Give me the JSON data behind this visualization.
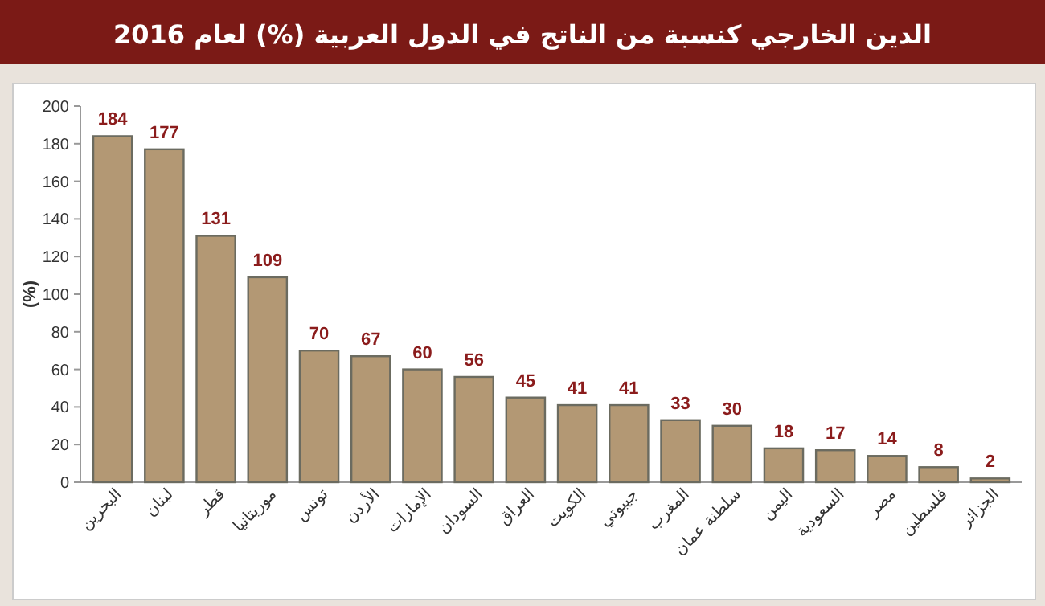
{
  "chart_data": {
    "type": "bar",
    "title": "الدين الخارجي كنسبة من الناتج  في الدول العربية (%) لعام 2016",
    "ylabel": "(%)",
    "categories": [
      "البحرين",
      "لبنان",
      "قطر",
      "موريتانيا",
      "تونس",
      "الأردن",
      "الإمارات",
      "السودان",
      "العراق",
      "الكويت",
      "جيبوتي",
      "المغرب",
      "سلطنة عمان",
      "اليمن",
      "السعودية",
      "مصر",
      "فلسطين",
      "الجزائر"
    ],
    "values": [
      184,
      177,
      131,
      109,
      70,
      67,
      60,
      56,
      45,
      41,
      41,
      33,
      30,
      18,
      17,
      14,
      8,
      2
    ],
    "color": "#b39874",
    "data_labels": true,
    "ylim": [
      0,
      200
    ],
    "yticks": [
      0,
      20,
      40,
      60,
      80,
      100,
      120,
      140,
      160,
      180,
      200
    ]
  }
}
